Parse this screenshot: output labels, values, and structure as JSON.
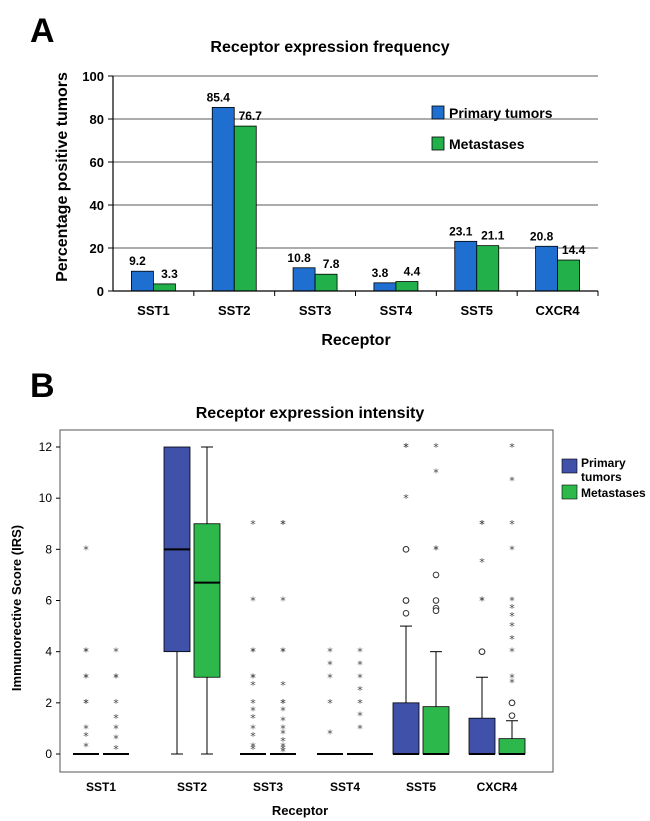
{
  "chart_data": [
    {
      "panel": "A",
      "type": "bar",
      "title": "Receptor expression frequency",
      "xlabel": "Receptor",
      "ylabel": "Percentage positive tumors",
      "categories": [
        "SST1",
        "SST2",
        "SST3",
        "SST4",
        "SST5",
        "CXCR4"
      ],
      "series": [
        {
          "name": "Primary tumors",
          "color": "#1f6fd1",
          "values": [
            9.2,
            85.4,
            10.8,
            3.8,
            23.1,
            20.8
          ]
        },
        {
          "name": "Metastases",
          "color": "#22b04b",
          "values": [
            3.3,
            76.7,
            7.8,
            4.4,
            21.1,
            14.4
          ]
        }
      ],
      "data_labels": {
        "primary": [
          "9.2",
          "85.4",
          "10.8",
          "3.8",
          "23.1",
          "20.8"
        ],
        "metastases": [
          "3.3",
          "76.7",
          "7.8",
          "4.4",
          "21.1",
          "14.4"
        ]
      },
      "ylim": [
        0,
        100
      ],
      "yticks": [
        0,
        20,
        40,
        60,
        80,
        100
      ],
      "grid": true,
      "legend_position": "top-right"
    },
    {
      "panel": "B",
      "type": "box",
      "title": "Receptor expression intensity",
      "xlabel": "Receptor",
      "ylabel": "Immunorective Score (IRS)",
      "categories": [
        "SST1",
        "SST2",
        "SST3",
        "SST4",
        "SST5",
        "CXCR4"
      ],
      "legend_primary_lines": [
        "Primary",
        "tumors"
      ],
      "legend_metastases": "Metastases",
      "colors": {
        "primary": "#3f51a8",
        "metastases": "#2db84c"
      },
      "ylim": [
        0,
        12
      ],
      "yticks": [
        0,
        2,
        4,
        6,
        8,
        10,
        12
      ],
      "grid": false,
      "legend_position": "top-right",
      "boxes": [
        {
          "category": "SST1",
          "group": "primary",
          "min": 0,
          "q1": 0,
          "median": 0,
          "q3": 0,
          "max": 0,
          "outliers": [],
          "extremes": [
            8,
            4,
            4,
            3,
            3,
            2,
            2,
            1,
            0.7,
            0.3
          ]
        },
        {
          "category": "SST1",
          "group": "metastases",
          "min": 0,
          "q1": 0,
          "median": 0,
          "q3": 0,
          "max": 0,
          "outliers": [],
          "extremes": [
            4,
            3,
            3,
            2,
            1.4,
            1,
            0.6,
            0.2
          ]
        },
        {
          "category": "SST2",
          "group": "primary",
          "min": 0,
          "q1": 4,
          "median": 8,
          "q3": 12,
          "max": 12,
          "outliers": [],
          "extremes": []
        },
        {
          "category": "SST2",
          "group": "metastases",
          "min": 0,
          "q1": 3,
          "median": 6.7,
          "q3": 9,
          "max": 12,
          "outliers": [],
          "extremes": []
        },
        {
          "category": "SST3",
          "group": "primary",
          "min": 0,
          "q1": 0,
          "median": 0,
          "q3": 0,
          "max": 0,
          "outliers": [],
          "extremes": [
            9,
            6,
            4,
            4,
            3,
            3,
            2.7,
            2,
            1.7,
            1.4,
            1,
            0.7,
            0.3,
            0.2
          ]
        },
        {
          "category": "SST3",
          "group": "metastases",
          "min": 0,
          "q1": 0,
          "median": 0,
          "q3": 0,
          "max": 0,
          "outliers": [],
          "extremes": [
            9,
            9,
            6,
            4,
            4,
            2.7,
            2,
            2,
            1.7,
            1.3,
            1,
            0.8,
            0.5,
            0.3,
            0.2,
            0.1
          ]
        },
        {
          "category": "SST4",
          "group": "primary",
          "min": 0,
          "q1": 0,
          "median": 0,
          "q3": 0,
          "max": 0,
          "outliers": [],
          "extremes": [
            4,
            3.5,
            3,
            2,
            0.8
          ]
        },
        {
          "category": "SST4",
          "group": "metastases",
          "min": 0,
          "q1": 0,
          "median": 0,
          "q3": 0,
          "max": 0,
          "outliers": [],
          "extremes": [
            4,
            3.5,
            3,
            2.5,
            2,
            1.5,
            1
          ]
        },
        {
          "category": "SST5",
          "group": "primary",
          "min": 0,
          "q1": 0,
          "median": 0,
          "q3": 2,
          "max": 5,
          "outliers": [
            8,
            8,
            6,
            6,
            5.5
          ],
          "extremes": [
            12,
            12,
            10
          ]
        },
        {
          "category": "SST5",
          "group": "metastases",
          "min": 0,
          "q1": 0,
          "median": 0,
          "q3": 1.85,
          "max": 4,
          "outliers": [
            7,
            6,
            5.7,
            5.6
          ],
          "extremes": [
            12,
            11,
            8,
            8
          ]
        },
        {
          "category": "CXCR4",
          "group": "primary",
          "min": 0,
          "q1": 0,
          "median": 0,
          "q3": 1.4,
          "max": 3,
          "outliers": [
            4,
            4
          ],
          "extremes": [
            9,
            9,
            7.5,
            6,
            6
          ]
        },
        {
          "category": "CXCR4",
          "group": "metastases",
          "min": 0,
          "q1": 0,
          "median": 0,
          "q3": 0.6,
          "max": 1.3,
          "outliers": [
            2,
            2,
            1.5
          ],
          "extremes": [
            12,
            10.7,
            9,
            8,
            6,
            5.7,
            5.4,
            5,
            4.5,
            4,
            3,
            2.8
          ]
        }
      ]
    }
  ]
}
